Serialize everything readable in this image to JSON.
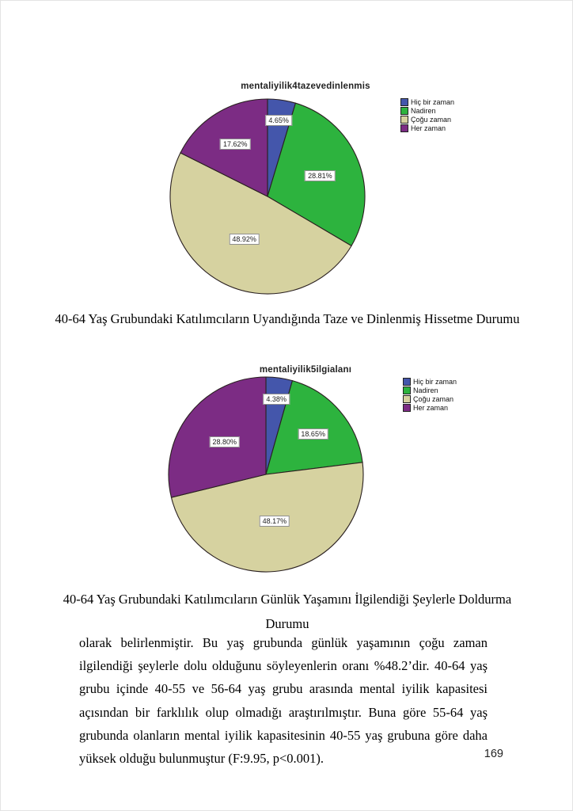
{
  "page_number": "169",
  "chart_data": [
    {
      "type": "pie",
      "title": "mentaliyilik4tazevedinlenmis",
      "categories": [
        "Hiç bir zaman",
        "Nadiren",
        "Çoğu zaman",
        "Her zaman"
      ],
      "values": [
        4.65,
        28.81,
        48.92,
        17.62
      ],
      "value_labels": [
        "4.65%",
        "28.81%",
        "48.92%",
        "17.62%"
      ],
      "colors": [
        "#4456ab",
        "#2db33e",
        "#d6d2a0",
        "#7c2c84"
      ],
      "start": "12-oclock",
      "direction": "clockwise",
      "legend_position": "top-right",
      "label_radius_fractions": [
        0.79,
        0.58,
        0.5,
        0.63
      ],
      "caption_lines": [
        "40-64 Yaş Grubundaki Katılımcıların Uyandığında Taze ve Dinlenmiş Hissetme Durumu"
      ]
    },
    {
      "type": "pie",
      "title": "mentaliyilik5ilgialanı",
      "categories": [
        "Hiç bir zaman",
        "Nadiren",
        "Çoğu zaman",
        "Her zaman"
      ],
      "values": [
        4.38,
        18.65,
        48.17,
        28.8
      ],
      "value_labels": [
        "4.38%",
        "18.65%",
        "48.17%",
        "28.80%"
      ],
      "colors": [
        "#4456ab",
        "#2db33e",
        "#d6d2a0",
        "#7c2c84"
      ],
      "start": "12-oclock",
      "direction": "clockwise",
      "legend_position": "top-right",
      "label_radius_fractions": [
        0.78,
        0.64,
        0.49,
        0.54
      ],
      "caption_lines": [
        "40-64 Yaş Grubundaki Katılımcıların Günlük Yaşamını İlgilendiği Şeylerle Doldurma",
        "Durumu"
      ]
    }
  ],
  "body_paragraph": "olarak belirlenmiştir. Bu yaş grubunda günlük yaşamının çoğu zaman ilgilendiği şeylerle dolu olduğunu söyleyenlerin oranı %48.2’dir. 40-64 yaş grubu içinde 40-55 ve 56-64 yaş grubu arasında mental iyilik kapasitesi açısından bir farklılık olup olmadığı araştırılmıştır. Buna göre 55-64 yaş grubunda olanların mental iyilik kapasitesinin 40-55 yaş grubuna göre daha yüksek olduğu bulunmuştur (F:9.95, p<0.001)."
}
